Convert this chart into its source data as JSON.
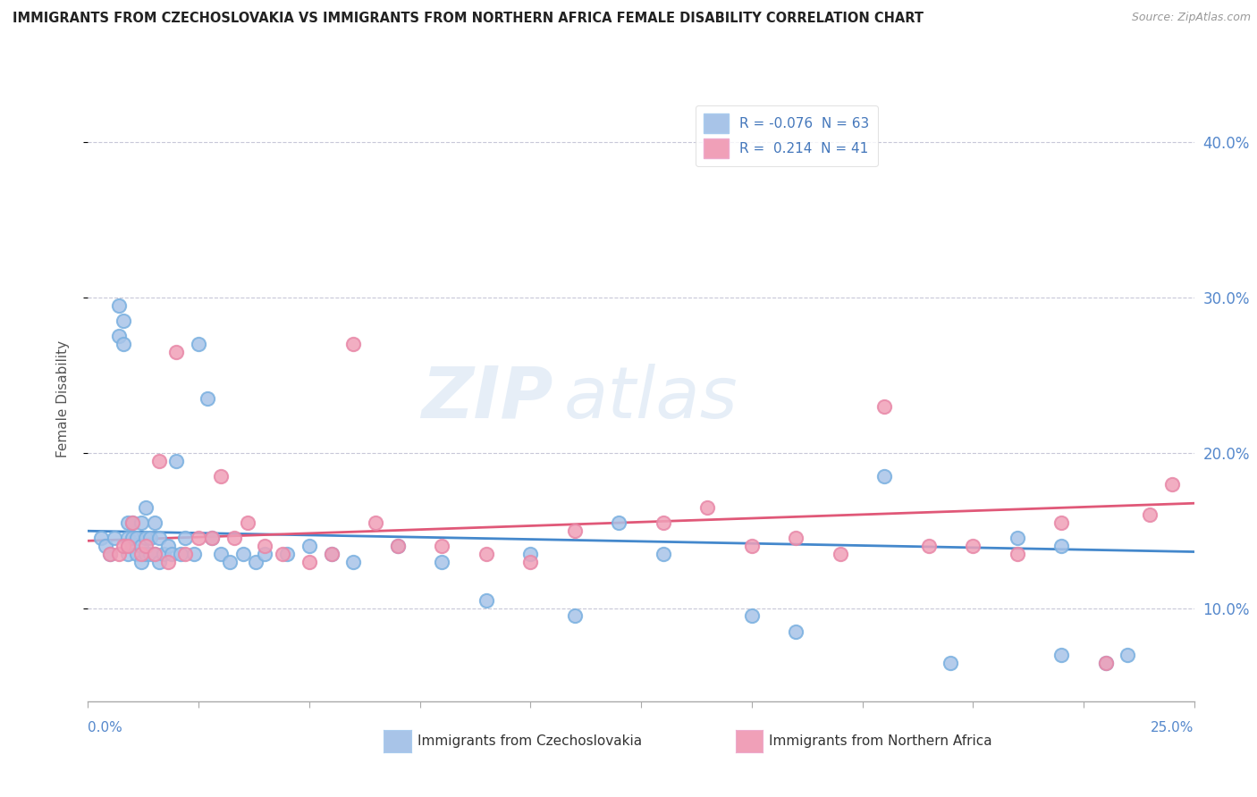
{
  "title": "IMMIGRANTS FROM CZECHOSLOVAKIA VS IMMIGRANTS FROM NORTHERN AFRICA FEMALE DISABILITY CORRELATION CHART",
  "source": "Source: ZipAtlas.com",
  "ylabel": "Female Disability",
  "right_yticks": [
    "10.0%",
    "20.0%",
    "30.0%",
    "40.0%"
  ],
  "right_ytick_vals": [
    0.1,
    0.2,
    0.3,
    0.4
  ],
  "xlim": [
    0.0,
    0.25
  ],
  "ylim": [
    0.04,
    0.43
  ],
  "legend_label1": "Immigrants from Czechoslovakia",
  "legend_label2": "Immigrants from Northern Africa",
  "R1": -0.076,
  "N1": 63,
  "R2": 0.214,
  "N2": 41,
  "color1": "#a8c4e8",
  "color2": "#f0a0b8",
  "trendline_color1": "#4488cc",
  "trendline_color2": "#e05878",
  "watermark_zip": "ZIP",
  "watermark_atlas": "atlas",
  "blue_dots_x": [
    0.003,
    0.004,
    0.005,
    0.006,
    0.007,
    0.007,
    0.008,
    0.008,
    0.009,
    0.009,
    0.009,
    0.01,
    0.01,
    0.01,
    0.011,
    0.011,
    0.012,
    0.012,
    0.012,
    0.013,
    0.013,
    0.013,
    0.014,
    0.014,
    0.015,
    0.015,
    0.016,
    0.016,
    0.017,
    0.018,
    0.019,
    0.02,
    0.021,
    0.022,
    0.024,
    0.025,
    0.027,
    0.028,
    0.03,
    0.032,
    0.035,
    0.038,
    0.04,
    0.045,
    0.05,
    0.055,
    0.06,
    0.07,
    0.08,
    0.09,
    0.1,
    0.11,
    0.12,
    0.13,
    0.15,
    0.16,
    0.18,
    0.195,
    0.21,
    0.22,
    0.22,
    0.23,
    0.235
  ],
  "blue_dots_y": [
    0.145,
    0.14,
    0.135,
    0.145,
    0.275,
    0.295,
    0.285,
    0.27,
    0.135,
    0.145,
    0.155,
    0.14,
    0.145,
    0.155,
    0.135,
    0.145,
    0.13,
    0.14,
    0.155,
    0.135,
    0.145,
    0.165,
    0.135,
    0.145,
    0.135,
    0.155,
    0.13,
    0.145,
    0.135,
    0.14,
    0.135,
    0.195,
    0.135,
    0.145,
    0.135,
    0.27,
    0.235,
    0.145,
    0.135,
    0.13,
    0.135,
    0.13,
    0.135,
    0.135,
    0.14,
    0.135,
    0.13,
    0.14,
    0.13,
    0.105,
    0.135,
    0.095,
    0.155,
    0.135,
    0.095,
    0.085,
    0.185,
    0.065,
    0.145,
    0.07,
    0.14,
    0.065,
    0.07
  ],
  "pink_dots_x": [
    0.005,
    0.007,
    0.008,
    0.009,
    0.01,
    0.012,
    0.013,
    0.015,
    0.016,
    0.018,
    0.02,
    0.022,
    0.025,
    0.028,
    0.03,
    0.033,
    0.036,
    0.04,
    0.044,
    0.05,
    0.055,
    0.06,
    0.065,
    0.07,
    0.08,
    0.09,
    0.1,
    0.11,
    0.13,
    0.14,
    0.15,
    0.16,
    0.17,
    0.18,
    0.19,
    0.2,
    0.21,
    0.22,
    0.23,
    0.24,
    0.245
  ],
  "pink_dots_y": [
    0.135,
    0.135,
    0.14,
    0.14,
    0.155,
    0.135,
    0.14,
    0.135,
    0.195,
    0.13,
    0.265,
    0.135,
    0.145,
    0.145,
    0.185,
    0.145,
    0.155,
    0.14,
    0.135,
    0.13,
    0.135,
    0.27,
    0.155,
    0.14,
    0.14,
    0.135,
    0.13,
    0.15,
    0.155,
    0.165,
    0.14,
    0.145,
    0.135,
    0.23,
    0.14,
    0.14,
    0.135,
    0.155,
    0.065,
    0.16,
    0.18
  ]
}
